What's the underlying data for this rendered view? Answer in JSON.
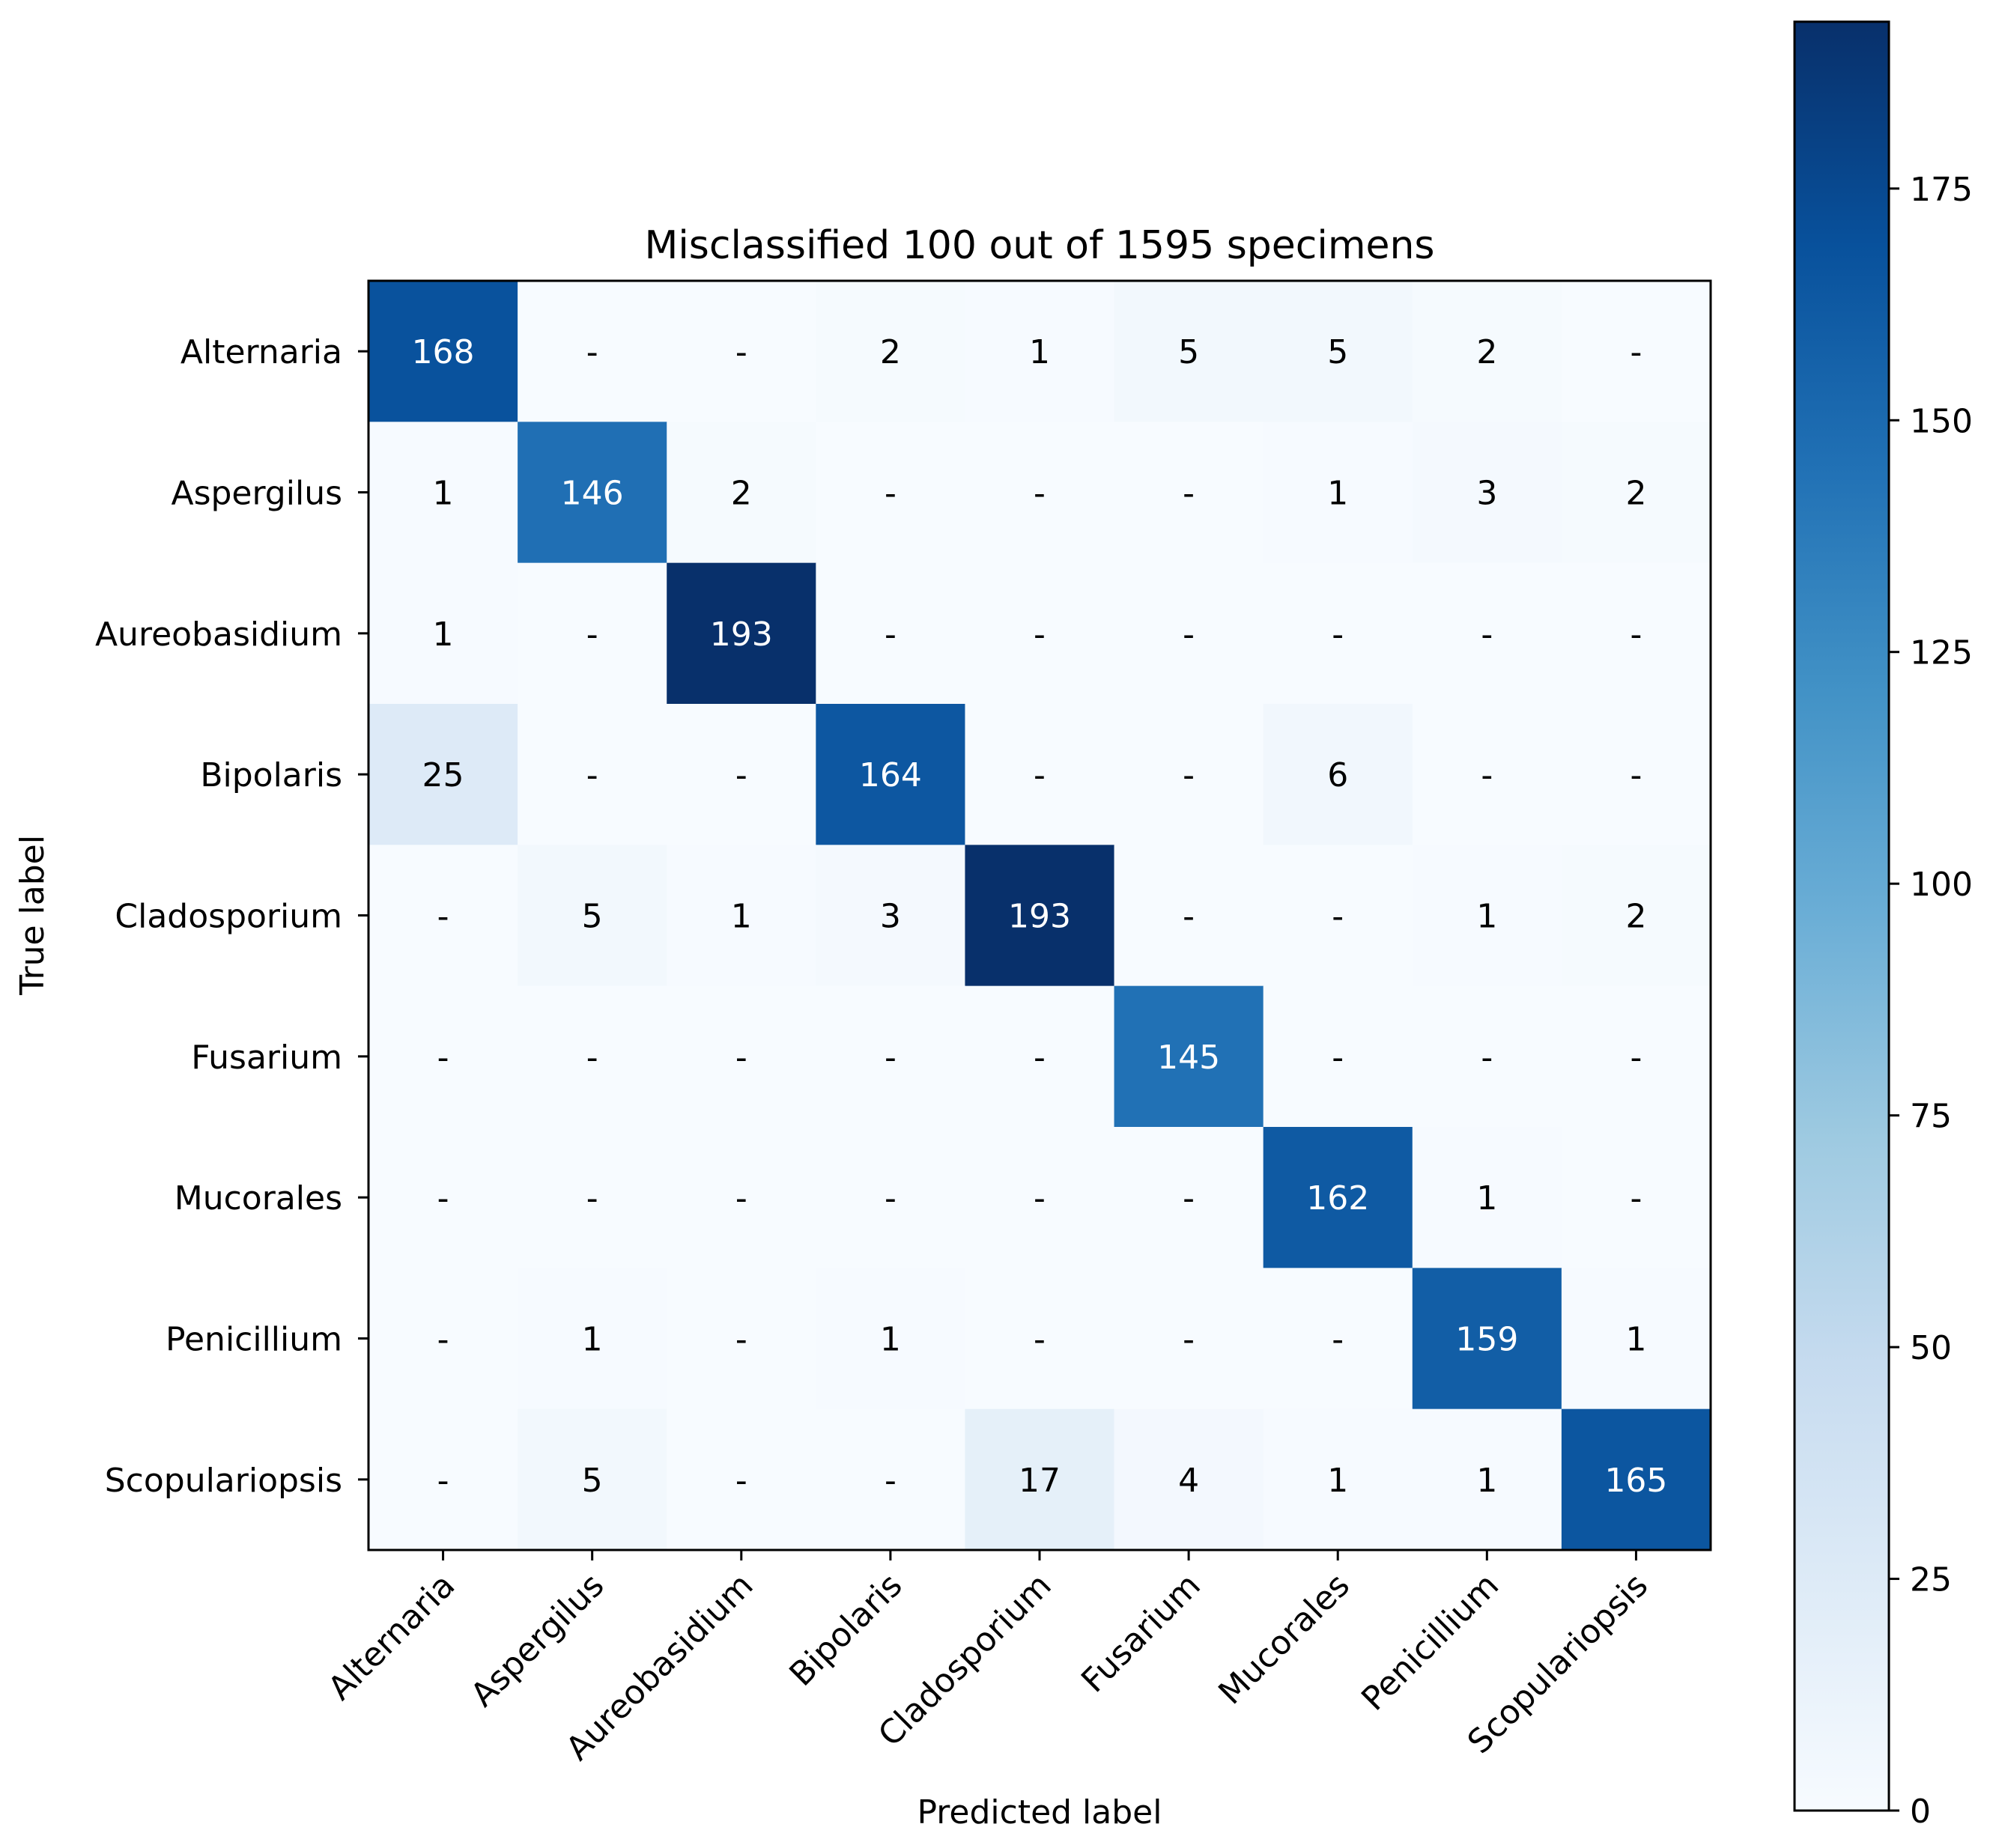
{
  "chart_data": {
    "type": "heatmap",
    "title": "Misclassified 100 out of 1595 specimens",
    "xlabel": "Predicted label",
    "ylabel": "True label",
    "labels": [
      "Alternaria",
      "Aspergilus",
      "Aureobasidium",
      "Bipolaris",
      "Cladosporium",
      "Fusarium",
      "Mucorales",
      "Penicillium",
      "Scopulariopsis"
    ],
    "matrix": [
      [
        168,
        0,
        0,
        2,
        1,
        5,
        5,
        2,
        0
      ],
      [
        1,
        146,
        2,
        0,
        0,
        0,
        1,
        3,
        2
      ],
      [
        1,
        0,
        193,
        0,
        0,
        0,
        0,
        0,
        0
      ],
      [
        25,
        0,
        0,
        164,
        0,
        0,
        6,
        0,
        0
      ],
      [
        0,
        5,
        1,
        3,
        193,
        0,
        0,
        1,
        2
      ],
      [
        0,
        0,
        0,
        0,
        0,
        145,
        0,
        0,
        0
      ],
      [
        0,
        0,
        0,
        0,
        0,
        0,
        162,
        1,
        0
      ],
      [
        0,
        1,
        0,
        1,
        0,
        0,
        0,
        159,
        1
      ],
      [
        0,
        5,
        0,
        0,
        17,
        4,
        1,
        1,
        165
      ]
    ],
    "zero_symbol": "-",
    "colormap": "Blues",
    "vmin": 0,
    "vmax": 193,
    "colorbar_ticks": [
      0,
      25,
      50,
      75,
      100,
      125,
      150,
      175
    ]
  }
}
